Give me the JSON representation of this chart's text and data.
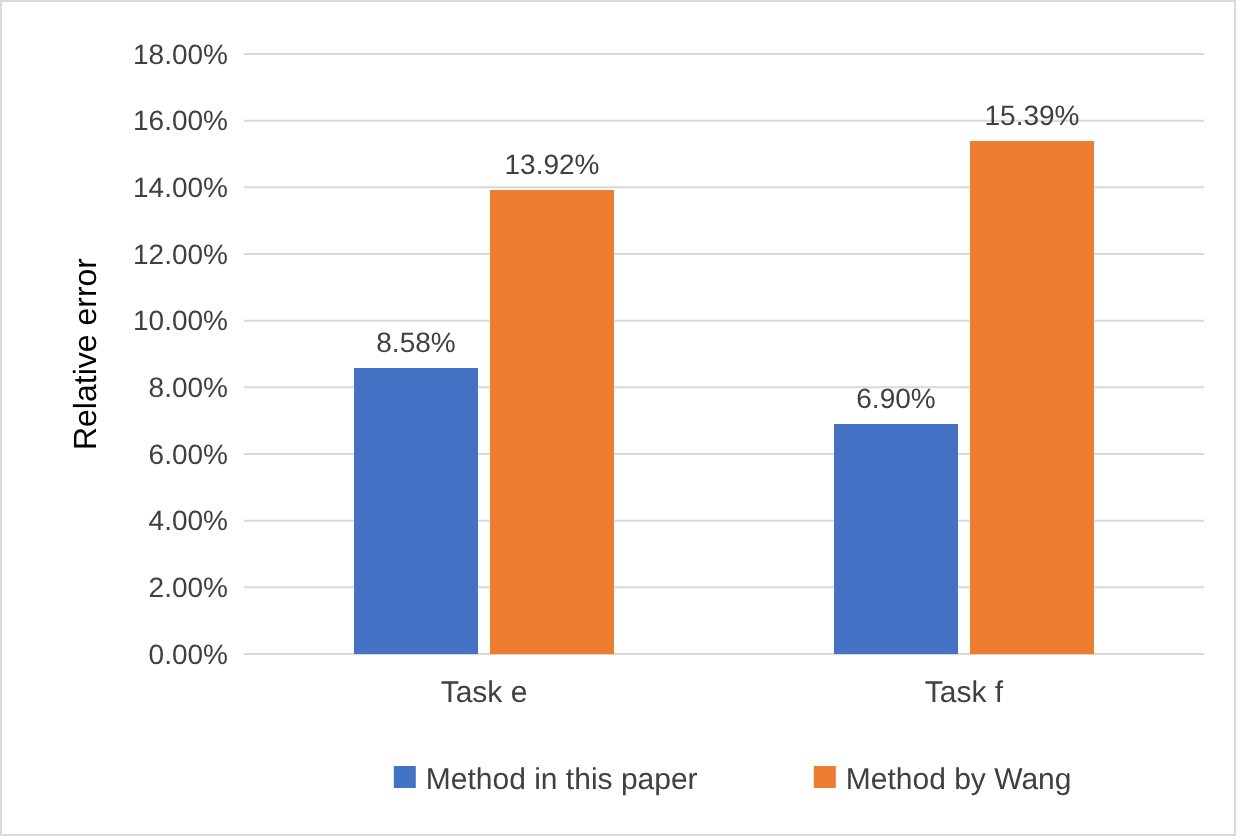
{
  "chart_data": {
    "type": "bar",
    "ylabel": "Relative error",
    "categories": [
      "Task e",
      "Task f"
    ],
    "series": [
      {
        "name": "Method in this paper",
        "color": "#4472c4",
        "values": [
          8.58,
          6.9
        ],
        "value_labels": [
          "8.58%",
          "6.90%"
        ]
      },
      {
        "name": "Method by Wang",
        "color": "#ed7d31",
        "values": [
          13.92,
          15.39
        ],
        "value_labels": [
          "13.92%",
          "15.39%"
        ]
      }
    ],
    "ylim": [
      0,
      18
    ],
    "yticks": [
      {
        "value": 0,
        "label": "0.00%"
      },
      {
        "value": 2,
        "label": "2.00%"
      },
      {
        "value": 4,
        "label": "4.00%"
      },
      {
        "value": 6,
        "label": "6.00%"
      },
      {
        "value": 8,
        "label": "8.00%"
      },
      {
        "value": 10,
        "label": "10.00%"
      },
      {
        "value": 12,
        "label": "12.00%"
      },
      {
        "value": 14,
        "label": "14.00%"
      },
      {
        "value": 16,
        "label": "16.00%"
      },
      {
        "value": 18,
        "label": "18.00%"
      }
    ],
    "grid": "y",
    "legend": "bottom"
  }
}
